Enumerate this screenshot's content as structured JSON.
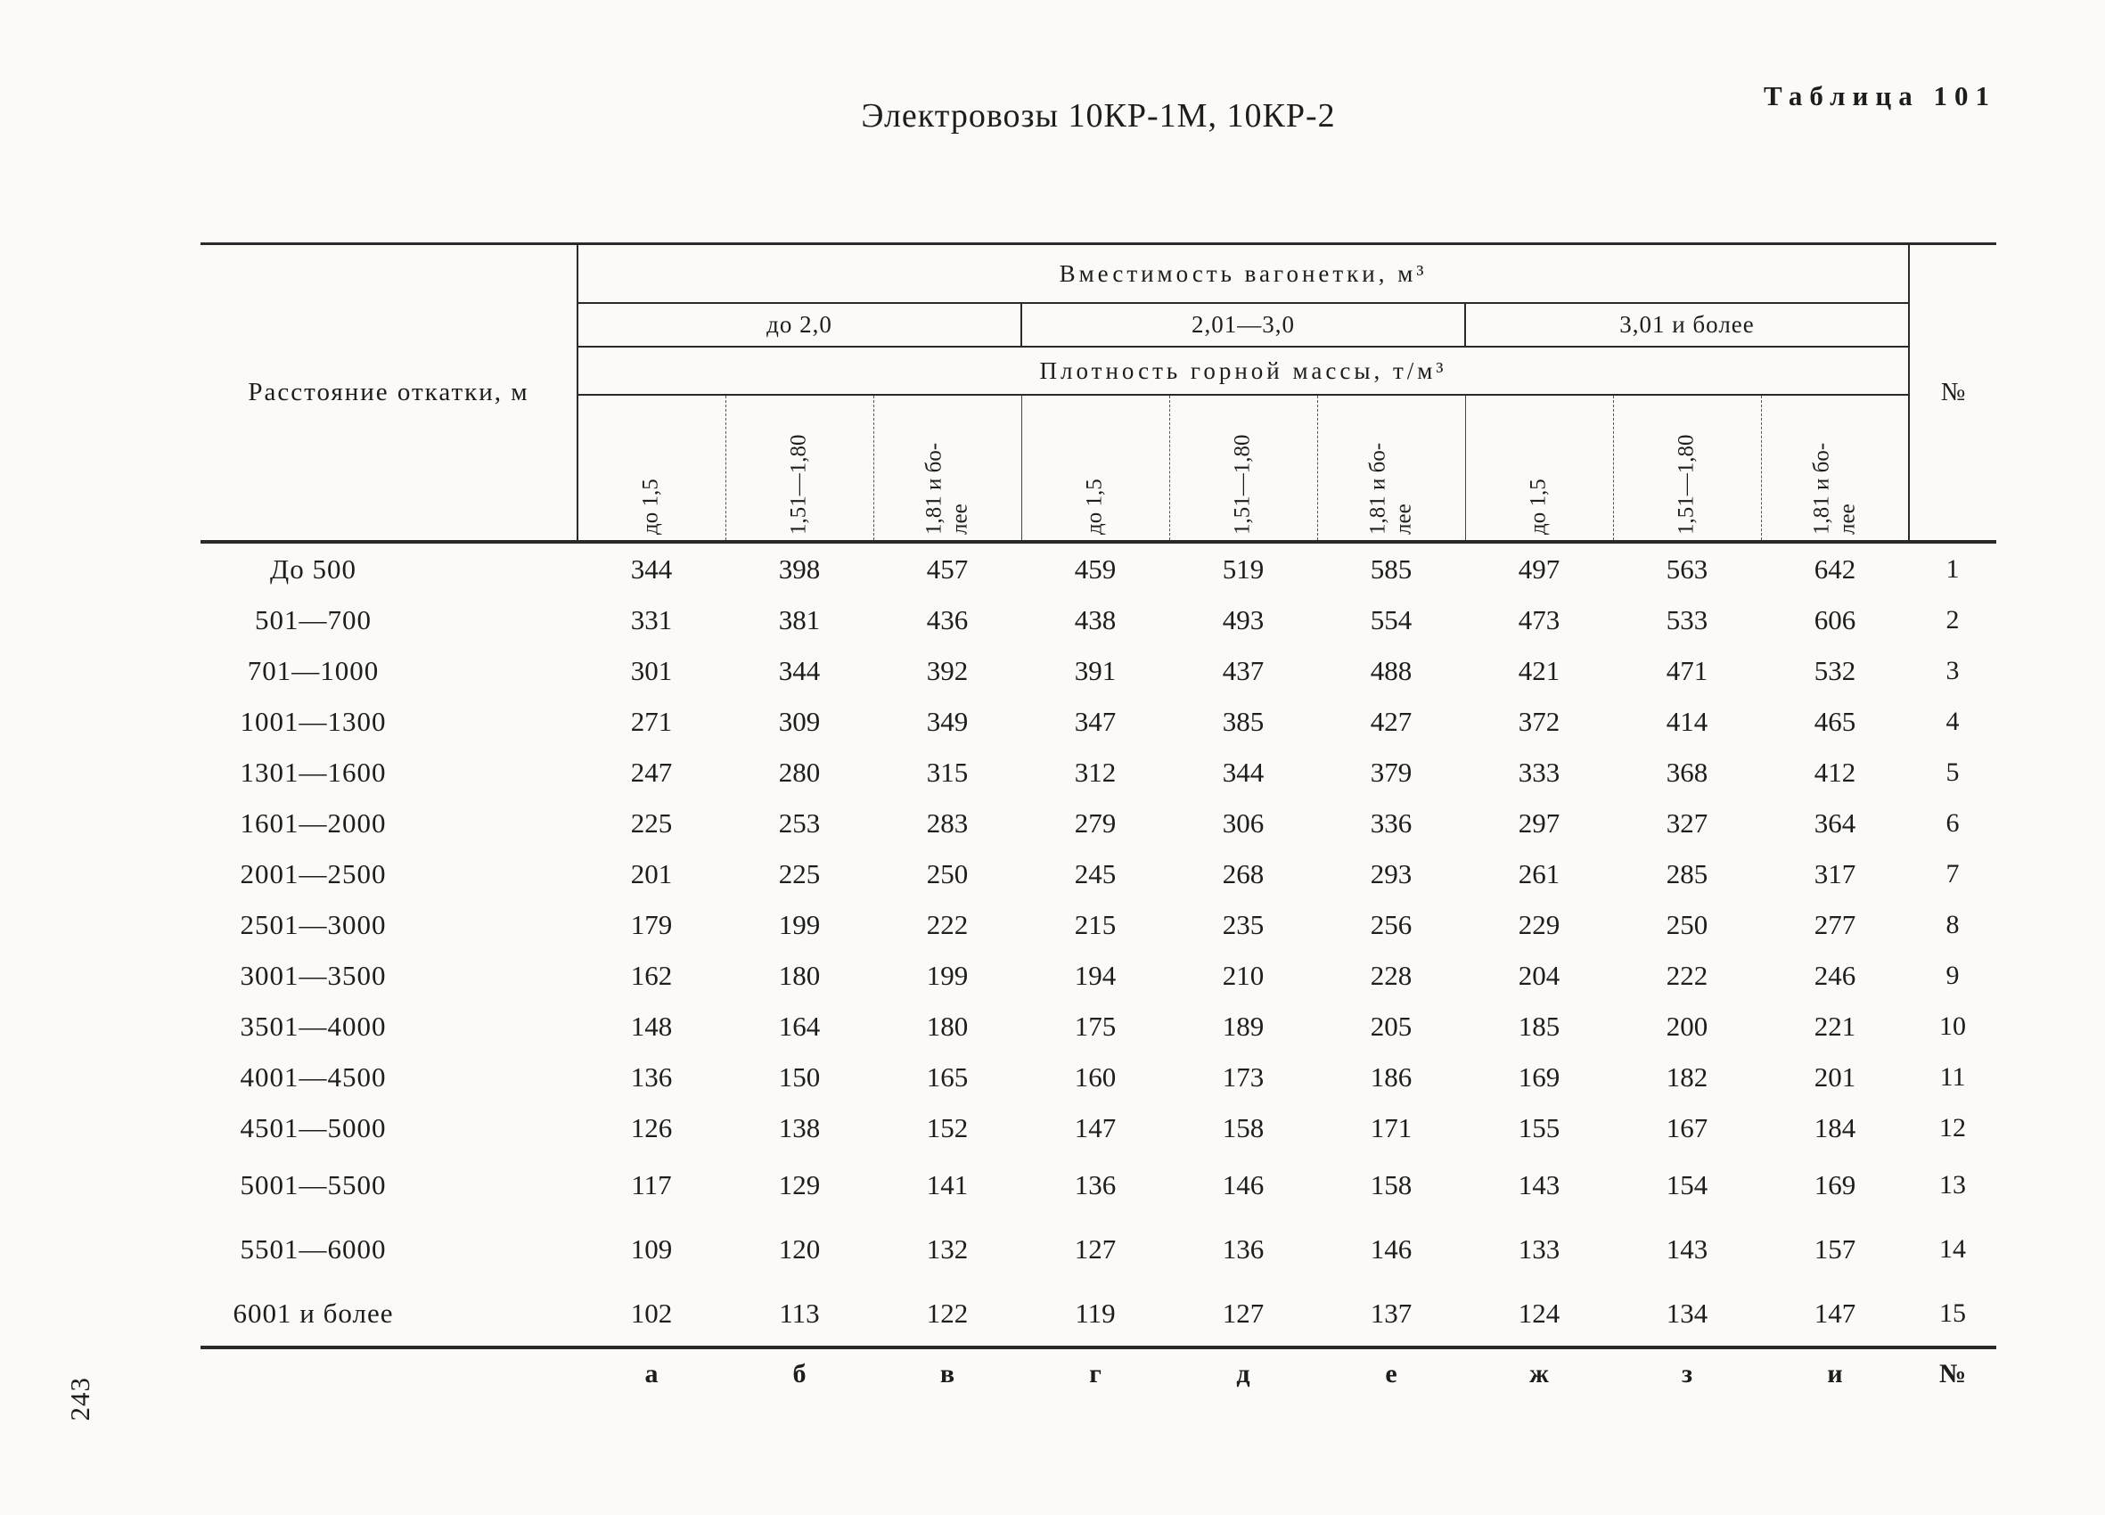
{
  "page": {
    "table_label": "Таблица 101",
    "title": "Электровозы 10КР-1М, 10КР-2",
    "page_number": "243"
  },
  "table": {
    "row_header": "Расстояние откатки, м",
    "number_header": "№",
    "capacity_header": "Вместимость вагонетки, м³",
    "capacity_groups": [
      "до 2,0",
      "2,01—3,0",
      "3,01 и более"
    ],
    "density_header": "Плотность горной массы, т/м³",
    "density_cols": [
      "до 1,5",
      "1,51—1,80",
      "1,81 и бо-\nлее",
      "до 1,5",
      "1,51—1,80",
      "1,81 и бо-\nлее",
      "до 1,5",
      "1,51—1,80",
      "1,81 и бо-\nлее"
    ],
    "rows": [
      {
        "label": "До 500",
        "values": [
          344,
          398,
          457,
          459,
          519,
          585,
          497,
          563,
          642
        ],
        "num": 1
      },
      {
        "label": "501—700",
        "values": [
          331,
          381,
          436,
          438,
          493,
          554,
          473,
          533,
          606
        ],
        "num": 2
      },
      {
        "label": "701—1000",
        "values": [
          301,
          344,
          392,
          391,
          437,
          488,
          421,
          471,
          532
        ],
        "num": 3
      },
      {
        "label": "1001—1300",
        "values": [
          271,
          309,
          349,
          347,
          385,
          427,
          372,
          414,
          465
        ],
        "num": 4
      },
      {
        "label": "1301—1600",
        "values": [
          247,
          280,
          315,
          312,
          344,
          379,
          333,
          368,
          412
        ],
        "num": 5
      },
      {
        "label": "1601—2000",
        "values": [
          225,
          253,
          283,
          279,
          306,
          336,
          297,
          327,
          364
        ],
        "num": 6
      },
      {
        "label": "2001—2500",
        "values": [
          201,
          225,
          250,
          245,
          268,
          293,
          261,
          285,
          317
        ],
        "num": 7
      },
      {
        "label": "2501—3000",
        "values": [
          179,
          199,
          222,
          215,
          235,
          256,
          229,
          250,
          277
        ],
        "num": 8
      },
      {
        "label": "3001—3500",
        "values": [
          162,
          180,
          199,
          194,
          210,
          228,
          204,
          222,
          246
        ],
        "num": 9
      },
      {
        "label": "3501—4000",
        "values": [
          148,
          164,
          180,
          175,
          189,
          205,
          185,
          200,
          221
        ],
        "num": 10
      },
      {
        "label": "4001—4500",
        "values": [
          136,
          150,
          165,
          160,
          173,
          186,
          169,
          182,
          201
        ],
        "num": 11
      },
      {
        "label": "4501—5000",
        "values": [
          126,
          138,
          152,
          147,
          158,
          171,
          155,
          167,
          184
        ],
        "num": 12
      },
      {
        "label": "5001—5500",
        "values": [
          117,
          129,
          141,
          136,
          146,
          158,
          143,
          154,
          169
        ],
        "num": 13
      },
      {
        "label": "5501—6000",
        "values": [
          109,
          120,
          132,
          127,
          136,
          146,
          133,
          143,
          157
        ],
        "num": 14
      },
      {
        "label": "6001 и более",
        "values": [
          102,
          113,
          122,
          119,
          127,
          137,
          124,
          134,
          147
        ],
        "num": 15
      }
    ],
    "footer": {
      "letters": [
        "а",
        "б",
        "в",
        "г",
        "д",
        "е",
        "ж",
        "з",
        "и"
      ],
      "number": "№"
    }
  }
}
